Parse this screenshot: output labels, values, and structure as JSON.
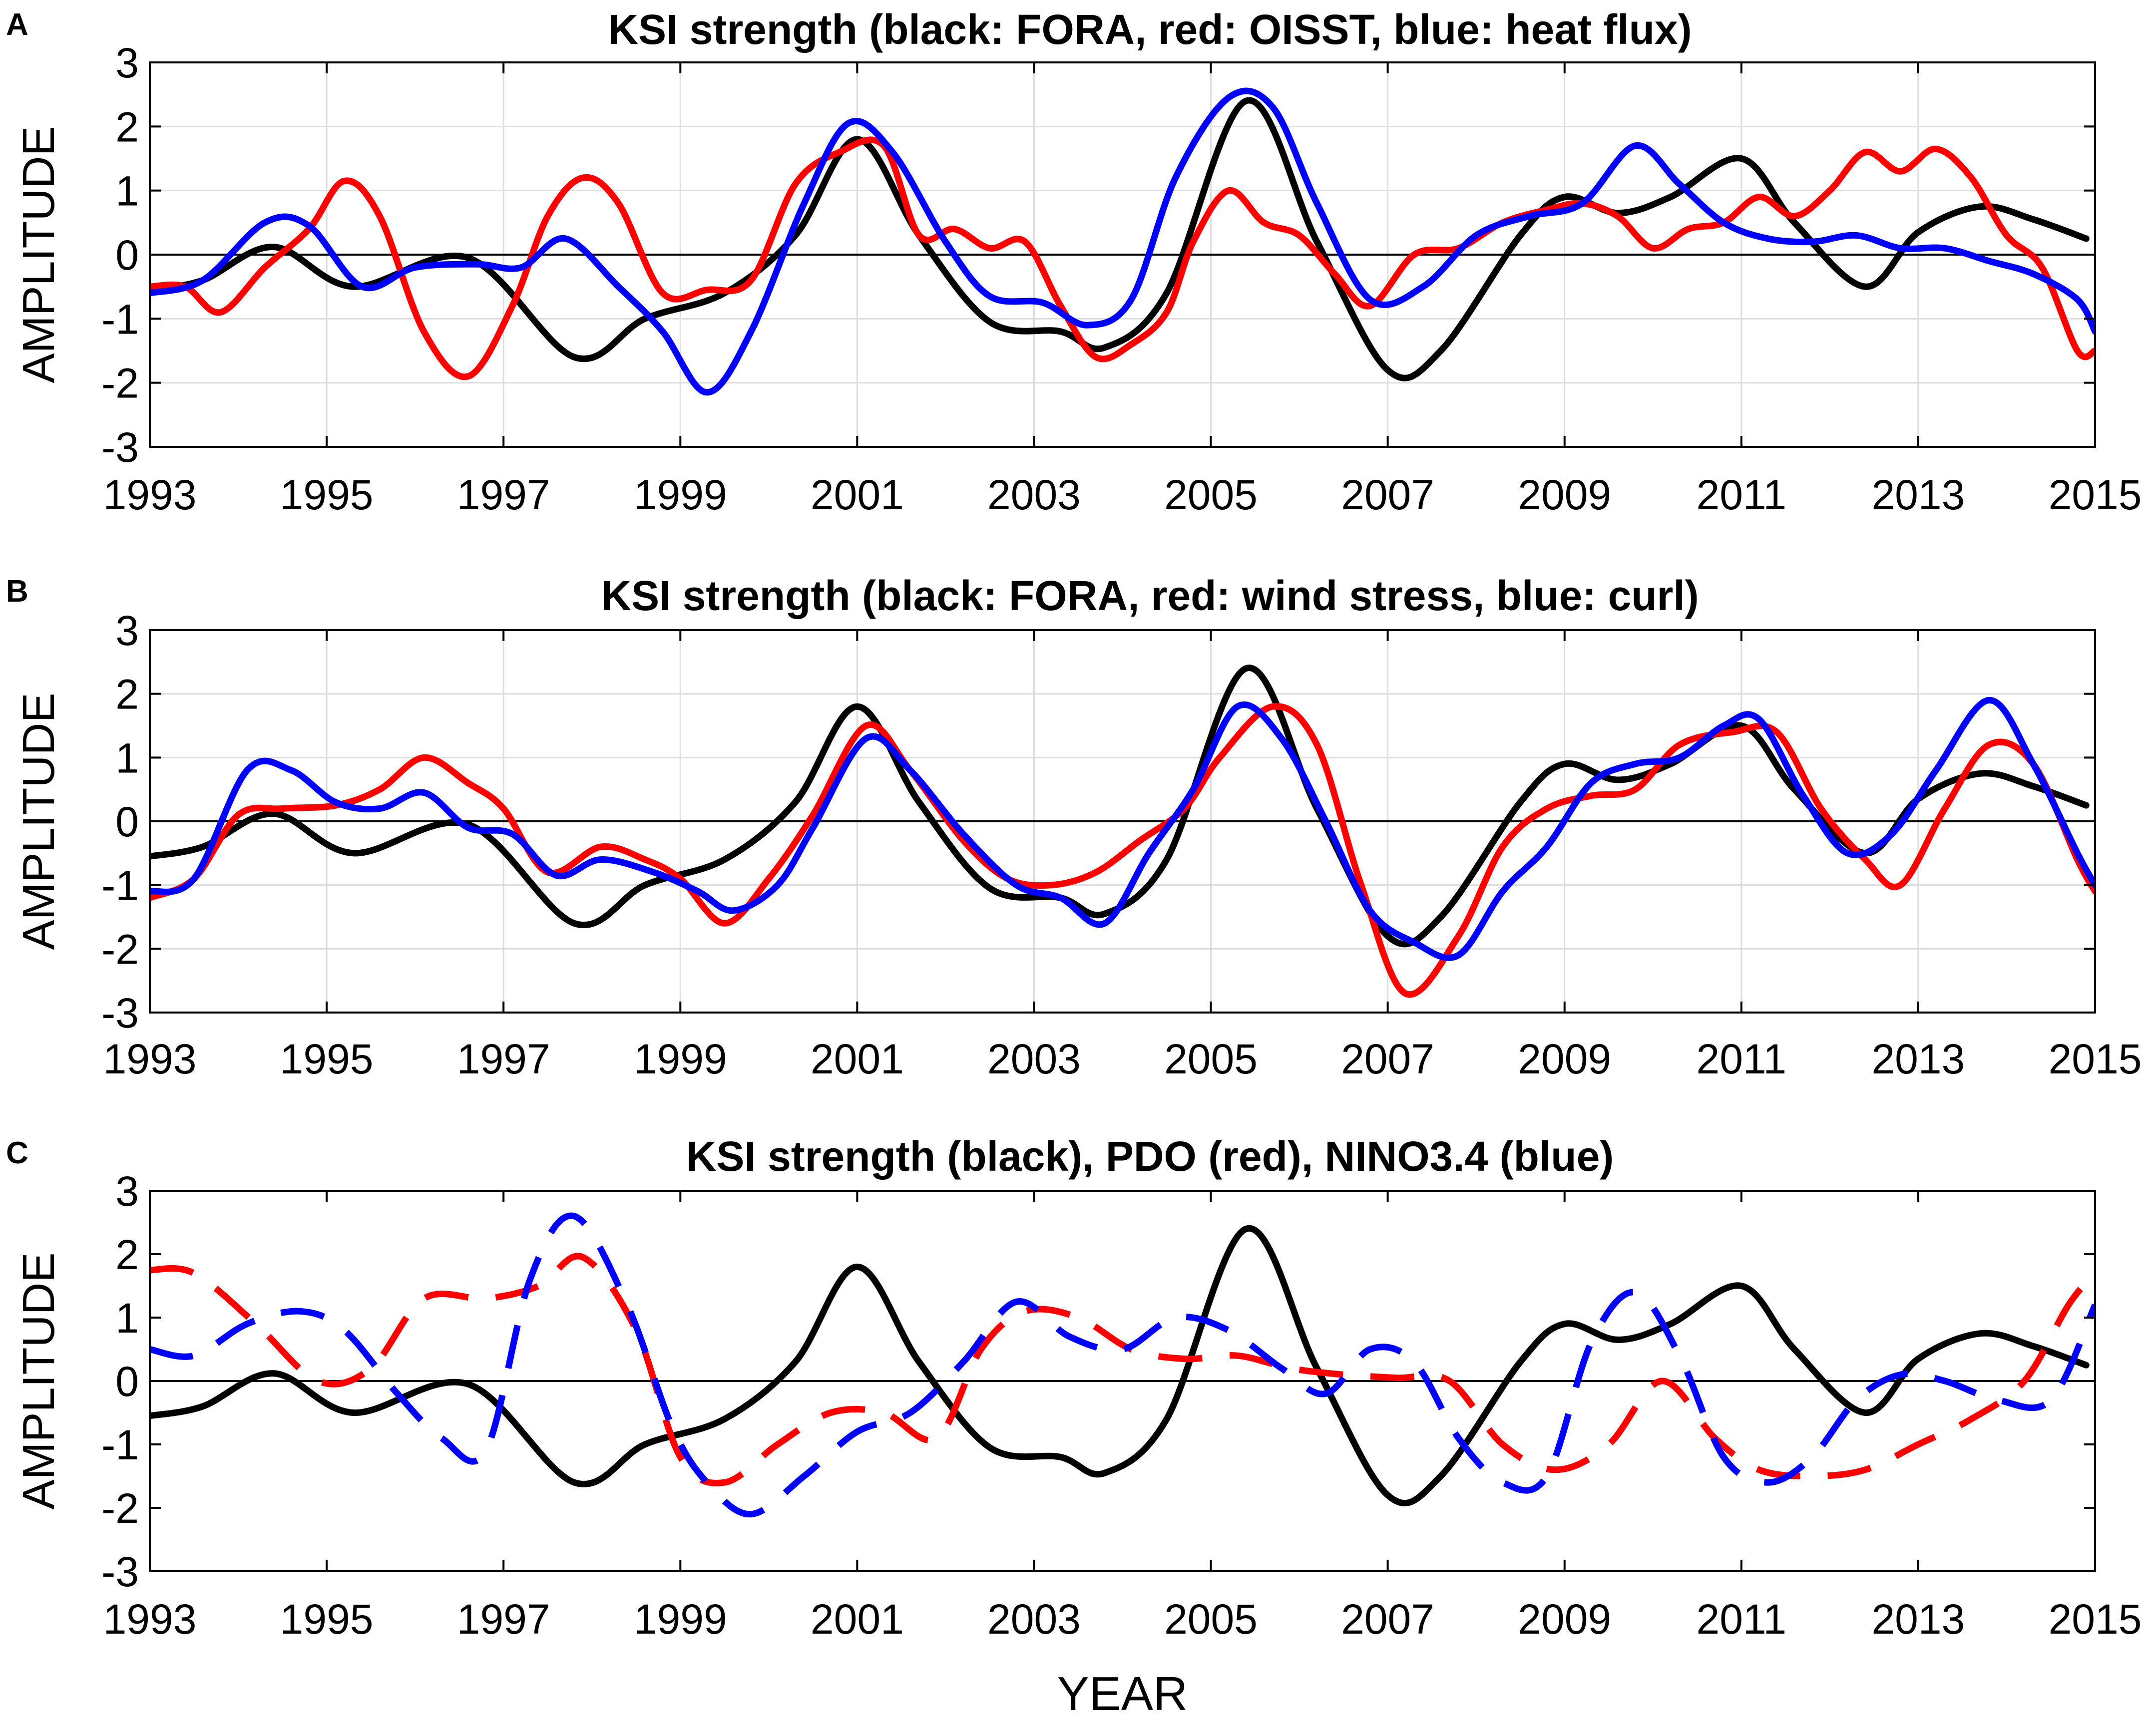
{
  "chart_data": [
    {
      "type": "line",
      "panel_label": "A",
      "title": "KSI strength (black: FORA, red: OISST, blue: heat flux)",
      "xlabel": "",
      "ylabel": "AMPLITUDE",
      "xlim": [
        1993,
        2015
      ],
      "ylim": [
        -3,
        3
      ],
      "xticks": [
        1993,
        1995,
        1997,
        1999,
        2001,
        2003,
        2005,
        2007,
        2009,
        2011,
        2013,
        2015
      ],
      "yticks": [
        -3,
        -2,
        -1,
        0,
        1,
        2,
        3
      ],
      "grid": true,
      "series": [
        {
          "name": "FORA",
          "color": "#000000",
          "style": "solid",
          "x": [
            1993,
            1993.6,
            1994.4,
            1995.3,
            1996.6,
            1997.8,
            1998.6,
            1999.5,
            2000.3,
            2001.0,
            2001.7,
            2002.5,
            2003.3,
            2003.8,
            2004.5,
            2005.4,
            2006.2,
            2007.0,
            2007.6,
            2008.5,
            2009.0,
            2009.6,
            2010.2,
            2011.0,
            2011.6,
            2012.4,
            2013.0,
            2013.7,
            2014.3,
            2014.9
          ],
          "y": [
            -0.55,
            -0.4,
            0.12,
            -0.5,
            -0.05,
            -1.6,
            -1.0,
            -0.6,
            0.3,
            1.8,
            0.3,
            -1.05,
            -1.2,
            -1.45,
            -0.6,
            2.4,
            0.2,
            -1.8,
            -1.5,
            0.3,
            0.9,
            0.65,
            0.9,
            1.5,
            0.5,
            -0.5,
            0.35,
            0.75,
            0.55,
            0.25
          ]
        },
        {
          "name": "OISST",
          "color": "#ff0000",
          "style": "solid",
          "x": [
            1993,
            1993.4,
            1993.8,
            1994.3,
            1994.8,
            1995.2,
            1995.6,
            1996.1,
            1996.6,
            1997.1,
            1997.5,
            1997.9,
            1998.3,
            1998.8,
            1999.3,
            1999.8,
            2000.3,
            2000.8,
            2001.3,
            2001.7,
            2002.1,
            2002.5,
            2002.9,
            2003.3,
            2003.7,
            2004.1,
            2004.5,
            2004.8,
            2005.2,
            2005.6,
            2006.0,
            2006.4,
            2006.8,
            2007.3,
            2007.8,
            2008.3,
            2008.8,
            2009.2,
            2009.6,
            2010.0,
            2010.4,
            2010.8,
            2011.2,
            2011.6,
            2012.0,
            2012.4,
            2012.8,
            2013.2,
            2013.6,
            2014.0,
            2014.4,
            2014.8,
            2015.0
          ],
          "y": [
            -0.5,
            -0.5,
            -0.9,
            -0.2,
            0.4,
            1.15,
            0.6,
            -1.2,
            -1.9,
            -0.8,
            0.6,
            1.2,
            0.8,
            -0.6,
            -0.55,
            -0.4,
            1.1,
            1.6,
            1.7,
            0.3,
            0.4,
            0.1,
            0.2,
            -0.8,
            -1.6,
            -1.4,
            -0.9,
            0.2,
            1.0,
            0.5,
            0.3,
            -0.3,
            -0.8,
            0.0,
            0.1,
            0.5,
            0.7,
            0.8,
            0.6,
            0.1,
            0.4,
            0.5,
            0.9,
            0.6,
            1.0,
            1.6,
            1.3,
            1.65,
            1.2,
            0.3,
            -0.2,
            -1.5,
            -1.5
          ]
        },
        {
          "name": "heat flux",
          "color": "#0000ff",
          "style": "solid",
          "x": [
            1993,
            1993.6,
            1994.3,
            1994.8,
            1995.4,
            1996.0,
            1996.7,
            1997.2,
            1997.7,
            1998.3,
            1998.8,
            1999.3,
            1999.8,
            2000.4,
            2000.9,
            2001.4,
            2002.0,
            2002.5,
            2003.1,
            2003.6,
            2004.1,
            2004.6,
            2005.2,
            2005.7,
            2006.2,
            2006.8,
            2007.4,
            2008.0,
            2008.6,
            2009.2,
            2009.8,
            2010.3,
            2010.8,
            2011.3,
            2011.8,
            2012.3,
            2012.8,
            2013.3,
            2013.8,
            2014.3,
            2014.8,
            2015.0
          ],
          "y": [
            -0.6,
            -0.4,
            0.5,
            0.45,
            -0.5,
            -0.2,
            -0.15,
            -0.2,
            0.25,
            -0.5,
            -1.2,
            -2.15,
            -1.2,
            0.8,
            2.05,
            1.6,
            0.2,
            -0.65,
            -0.75,
            -1.1,
            -0.7,
            1.2,
            2.45,
            2.3,
            0.8,
            -0.7,
            -0.5,
            0.3,
            0.6,
            0.8,
            1.7,
            1.1,
            0.5,
            0.25,
            0.2,
            0.3,
            0.1,
            0.1,
            -0.1,
            -0.3,
            -0.7,
            -1.2
          ]
        }
      ]
    },
    {
      "type": "line",
      "panel_label": "B",
      "title": "KSI strength (black: FORA, red: wind stress, blue: curl)",
      "xlabel": "",
      "ylabel": "AMPLITUDE",
      "xlim": [
        1993,
        2015
      ],
      "ylim": [
        -3,
        3
      ],
      "xticks": [
        1993,
        1995,
        1997,
        1999,
        2001,
        2003,
        2005,
        2007,
        2009,
        2011,
        2013,
        2015
      ],
      "yticks": [
        -3,
        -2,
        -1,
        0,
        1,
        2,
        3
      ],
      "grid": true,
      "series": [
        {
          "name": "FORA",
          "color": "#000000",
          "style": "solid",
          "x": [
            1993,
            1993.6,
            1994.4,
            1995.3,
            1996.6,
            1997.8,
            1998.6,
            1999.5,
            2000.3,
            2001.0,
            2001.7,
            2002.5,
            2003.3,
            2003.8,
            2004.5,
            2005.4,
            2006.2,
            2007.0,
            2007.6,
            2008.5,
            2009.0,
            2009.6,
            2010.2,
            2011.0,
            2011.6,
            2012.4,
            2013.0,
            2013.7,
            2014.3,
            2014.9
          ],
          "y": [
            -0.55,
            -0.4,
            0.12,
            -0.5,
            -0.05,
            -1.6,
            -1.0,
            -0.6,
            0.3,
            1.8,
            0.3,
            -1.05,
            -1.2,
            -1.45,
            -0.6,
            2.4,
            0.2,
            -1.8,
            -1.5,
            0.3,
            0.9,
            0.65,
            0.9,
            1.5,
            0.5,
            -0.5,
            0.35,
            0.75,
            0.55,
            0.25
          ]
        },
        {
          "name": "wind stress",
          "color": "#ff0000",
          "style": "solid",
          "x": [
            1993,
            1993.5,
            1994.0,
            1994.5,
            1995.1,
            1995.6,
            1996.1,
            1996.6,
            1997.0,
            1997.5,
            1998.1,
            1998.6,
            1999.0,
            1999.5,
            2000.0,
            2000.5,
            2001.1,
            2001.6,
            2002.2,
            2002.7,
            2003.2,
            2003.7,
            2004.2,
            2004.7,
            2005.1,
            2005.7,
            2006.2,
            2006.7,
            2007.2,
            2007.8,
            2008.3,
            2008.8,
            2009.3,
            2009.8,
            2010.3,
            2010.9,
            2011.4,
            2011.9,
            2012.4,
            2012.8,
            2013.3,
            2013.8,
            2014.3,
            2014.8,
            2015.0
          ],
          "y": [
            -1.2,
            -0.9,
            0.1,
            0.2,
            0.25,
            0.5,
            1.0,
            0.6,
            0.2,
            -0.8,
            -0.4,
            -0.6,
            -0.9,
            -1.6,
            -0.9,
            0.1,
            1.5,
            0.8,
            -0.3,
            -0.9,
            -1.0,
            -0.8,
            -0.3,
            0.2,
            1.0,
            1.8,
            1.2,
            -1.0,
            -2.7,
            -1.8,
            -0.4,
            0.2,
            0.4,
            0.5,
            1.2,
            1.4,
            1.4,
            0.2,
            -0.6,
            -1.0,
            0.2,
            1.2,
            0.9,
            -0.6,
            -1.1
          ]
        },
        {
          "name": "curl",
          "color": "#0000ff",
          "style": "solid",
          "x": [
            1993,
            1993.5,
            1994.1,
            1994.6,
            1995.1,
            1995.6,
            1996.1,
            1996.6,
            1997.1,
            1997.6,
            1998.1,
            1998.7,
            1999.2,
            1999.6,
            2000.1,
            2000.5,
            2001.1,
            2001.6,
            2002.2,
            2002.8,
            2003.3,
            2003.8,
            2004.3,
            2004.8,
            2005.3,
            2005.8,
            2006.3,
            2006.8,
            2007.3,
            2007.8,
            2008.3,
            2008.8,
            2009.3,
            2009.8,
            2010.3,
            2010.8,
            2011.2,
            2011.7,
            2012.2,
            2012.7,
            2013.2,
            2013.8,
            2014.3,
            2014.8,
            2015.0
          ],
          "y": [
            -1.1,
            -0.9,
            0.8,
            0.8,
            0.3,
            0.2,
            0.45,
            -0.1,
            -0.2,
            -0.85,
            -0.6,
            -0.8,
            -1.1,
            -1.4,
            -1.0,
            -0.1,
            1.3,
            0.8,
            -0.2,
            -1.0,
            -1.2,
            -1.6,
            -0.5,
            0.5,
            1.8,
            1.3,
            0.0,
            -1.4,
            -1.9,
            -2.1,
            -1.1,
            -0.4,
            0.6,
            0.9,
            1.0,
            1.5,
            1.6,
            0.4,
            -0.5,
            -0.2,
            0.8,
            1.9,
            0.9,
            -0.5,
            -1.0
          ]
        }
      ]
    },
    {
      "type": "line",
      "panel_label": "C",
      "title": "KSI strength (black), PDO (red), NINO3.4 (blue)",
      "xlabel": "YEAR",
      "ylabel": "AMPLITUDE",
      "xlim": [
        1993,
        2015
      ],
      "ylim": [
        -3,
        3
      ],
      "xticks": [
        1993,
        1995,
        1997,
        1999,
        2001,
        2003,
        2005,
        2007,
        2009,
        2011,
        2013,
        2015
      ],
      "yticks": [
        -3,
        -2,
        -1,
        0,
        1,
        2,
        3
      ],
      "grid": false,
      "series": [
        {
          "name": "KSI strength",
          "color": "#000000",
          "style": "solid",
          "x": [
            1993,
            1993.6,
            1994.4,
            1995.3,
            1996.6,
            1997.8,
            1998.6,
            1999.5,
            2000.3,
            2001.0,
            2001.7,
            2002.5,
            2003.3,
            2003.8,
            2004.5,
            2005.4,
            2006.2,
            2007.0,
            2007.6,
            2008.5,
            2009.0,
            2009.6,
            2010.2,
            2011.0,
            2011.6,
            2012.4,
            2013.0,
            2013.7,
            2014.3,
            2014.9
          ],
          "y": [
            -0.55,
            -0.4,
            0.12,
            -0.5,
            -0.05,
            -1.6,
            -1.0,
            -0.6,
            0.3,
            1.8,
            0.3,
            -1.05,
            -1.2,
            -1.45,
            -0.6,
            2.4,
            0.2,
            -1.8,
            -1.5,
            0.3,
            0.9,
            0.65,
            0.9,
            1.5,
            0.5,
            -0.5,
            0.35,
            0.75,
            0.55,
            0.25
          ]
        },
        {
          "name": "PDO",
          "color": "#ff0000",
          "style": "dashed",
          "x": [
            1993,
            1993.5,
            1994.2,
            1994.9,
            1995.5,
            1996.1,
            1996.8,
            1997.4,
            1997.9,
            1998.5,
            1999.0,
            1999.5,
            2000.1,
            2000.7,
            2001.3,
            2001.9,
            2002.4,
            2002.9,
            2003.5,
            2004.1,
            2004.7,
            2005.3,
            2005.9,
            2006.5,
            2007.1,
            2007.7,
            2008.3,
            2008.9,
            2009.5,
            2010.1,
            2010.7,
            2011.2,
            2011.8,
            2012.4,
            2013.0,
            2013.6,
            2014.2,
            2014.7,
            2015.0
          ],
          "y": [
            1.75,
            1.7,
            0.9,
            0.0,
            0.2,
            1.3,
            1.3,
            1.5,
            1.95,
            0.8,
            -1.2,
            -1.6,
            -1.0,
            -0.5,
            -0.5,
            -0.9,
            0.5,
            1.1,
            1.0,
            0.5,
            0.35,
            0.4,
            0.2,
            0.1,
            0.05,
            0.0,
            -1.0,
            -1.4,
            -1.0,
            0.0,
            -0.9,
            -1.4,
            -1.5,
            -1.4,
            -1.0,
            -0.6,
            0.0,
            1.2,
            1.7
          ]
        },
        {
          "name": "NINO3.4",
          "color": "#0000ff",
          "style": "dashed",
          "x": [
            1993,
            1993.5,
            1994.1,
            1994.7,
            1995.2,
            1995.8,
            1996.3,
            1996.8,
            1997.3,
            1997.8,
            1998.4,
            1998.9,
            1999.3,
            1999.8,
            2000.4,
            2001.0,
            2001.6,
            2002.2,
            2002.8,
            2003.4,
            2004.0,
            2004.6,
            2005.2,
            2005.8,
            2006.3,
            2006.8,
            2007.3,
            2007.8,
            2008.3,
            2008.8,
            2009.3,
            2009.8,
            2010.3,
            2010.8,
            2011.3,
            2011.8,
            2012.3,
            2012.8,
            2013.3,
            2013.9,
            2014.5,
            2015.0
          ],
          "y": [
            0.5,
            0.4,
            0.9,
            1.1,
            0.8,
            -0.2,
            -0.9,
            -1.1,
            1.6,
            2.6,
            1.2,
            -0.7,
            -1.6,
            -2.1,
            -1.5,
            -0.8,
            -0.5,
            0.3,
            1.25,
            0.7,
            0.5,
            1.0,
            0.8,
            0.2,
            -0.2,
            0.5,
            0.3,
            -0.9,
            -1.6,
            -1.5,
            0.6,
            1.4,
            0.4,
            -1.2,
            -1.6,
            -1.2,
            -0.3,
            0.1,
            0.0,
            -0.3,
            -0.3,
            1.2
          ]
        }
      ]
    }
  ]
}
